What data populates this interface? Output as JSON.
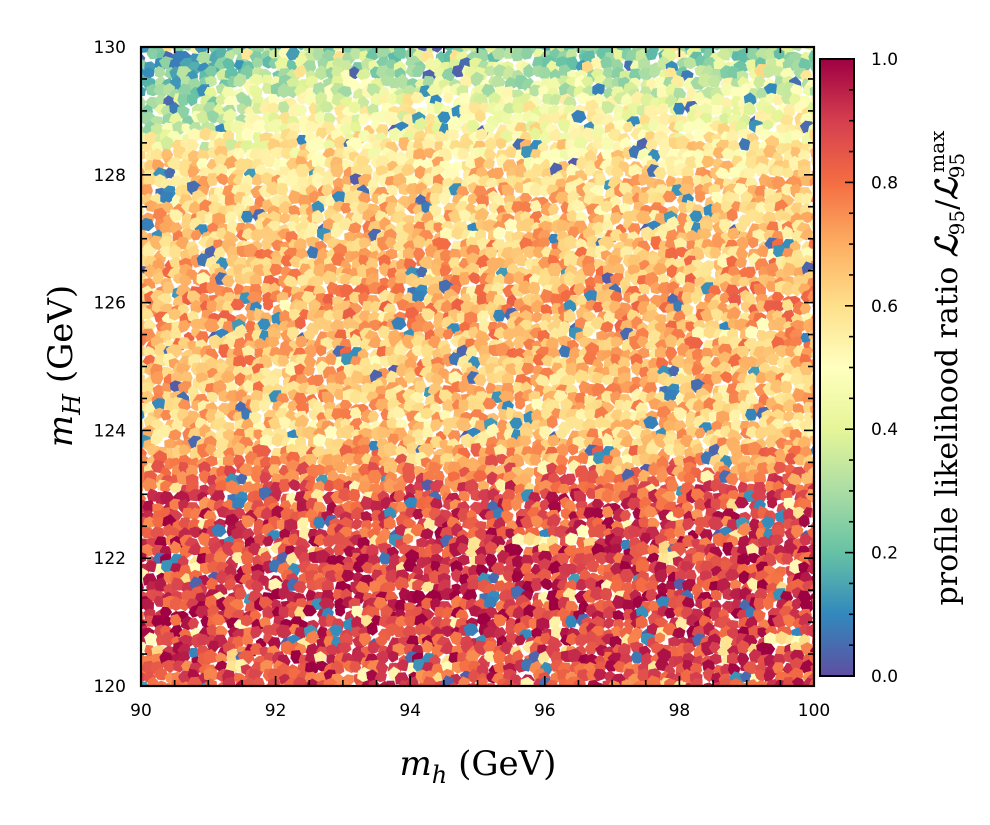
{
  "chart_data": {
    "type": "heatmap",
    "title": "",
    "x_axis": {
      "label_symbol": "m",
      "label_subscript": "h",
      "label_unit": " (GeV)",
      "range": [
        90,
        100
      ],
      "ticks": [
        90,
        92,
        94,
        96,
        98,
        100
      ]
    },
    "y_axis": {
      "label_symbol": "m",
      "label_subscript": "H",
      "label_unit": " (GeV)",
      "range": [
        120,
        130
      ],
      "ticks": [
        120,
        122,
        124,
        126,
        128,
        130
      ]
    },
    "colorbar": {
      "label_text": "profile likelihood ratio ",
      "label_symbol": "ℒ",
      "label_sub": "95",
      "label_slash": "/",
      "label_symbol2": "ℒ",
      "label_sub2": "95",
      "label_sup2": "max",
      "range": [
        0.0,
        1.0
      ],
      "ticks": [
        "0.0",
        "0.2",
        "0.4",
        "0.6",
        "0.8",
        "1.0"
      ],
      "colormap": "Spectral_r",
      "stops": [
        "#5e4fa2",
        "#3288bd",
        "#66c2a5",
        "#abdda4",
        "#e6f598",
        "#ffffbf",
        "#fee08b",
        "#fdae61",
        "#f46d43",
        "#d53e4f",
        "#9e0142"
      ]
    },
    "trend_profile": [
      {
        "y": 120.0,
        "value": 0.86
      },
      {
        "y": 121.0,
        "value": 0.9
      },
      {
        "y": 122.0,
        "value": 0.9
      },
      {
        "y": 123.0,
        "value": 0.85
      },
      {
        "y": 123.6,
        "value": 0.72
      },
      {
        "y": 124.0,
        "value": 0.64
      },
      {
        "y": 125.0,
        "value": 0.68
      },
      {
        "y": 126.0,
        "value": 0.71
      },
      {
        "y": 127.0,
        "value": 0.67
      },
      {
        "y": 128.0,
        "value": 0.62
      },
      {
        "y": 129.0,
        "value": 0.48
      },
      {
        "y": 129.5,
        "value": 0.36
      },
      {
        "y": 130.0,
        "value": 0.28
      }
    ]
  }
}
